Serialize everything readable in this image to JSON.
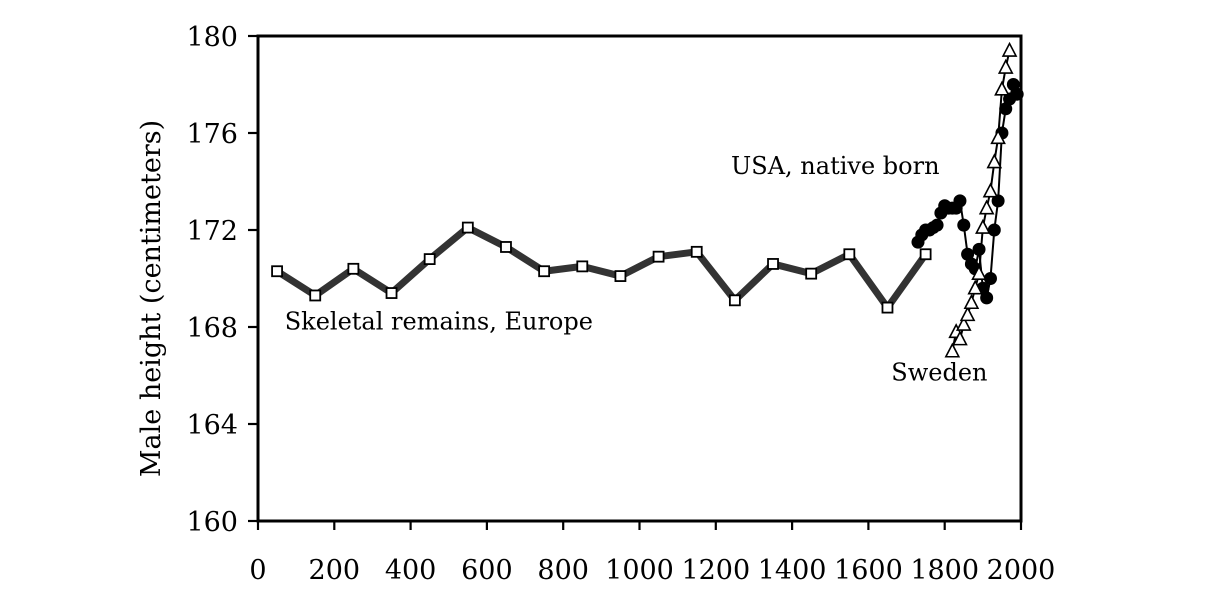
{
  "chart_data": {
    "type": "line",
    "title": "",
    "xlabel": "",
    "ylabel": "Male height (centimeters)",
    "xlim": [
      0,
      2000
    ],
    "ylim": [
      160,
      180
    ],
    "x_ticks": [
      0,
      200,
      400,
      600,
      800,
      1000,
      1200,
      1400,
      1600,
      1800,
      2000
    ],
    "y_ticks": [
      160,
      164,
      168,
      172,
      176,
      180
    ],
    "grid": false,
    "legend": "none",
    "series": [
      {
        "name": "Skeletal remains, Europe",
        "marker": "open-square",
        "line_color": "#333333",
        "x": [
          50,
          150,
          250,
          350,
          450,
          550,
          650,
          750,
          850,
          950,
          1050,
          1150,
          1250,
          1350,
          1450,
          1550,
          1650,
          1750
        ],
        "y": [
          170.3,
          169.3,
          170.4,
          169.4,
          170.8,
          172.1,
          171.3,
          170.3,
          170.5,
          170.1,
          170.9,
          171.1,
          169.1,
          170.6,
          170.2,
          171.0,
          168.8,
          171.0
        ]
      },
      {
        "name": "USA, native born",
        "marker": "filled-circle",
        "line_color": "#000000",
        "x": [
          1730,
          1740,
          1750,
          1760,
          1770,
          1780,
          1790,
          1800,
          1810,
          1820,
          1830,
          1840,
          1850,
          1860,
          1870,
          1880,
          1890,
          1900,
          1910,
          1920,
          1930,
          1940,
          1950,
          1960,
          1970,
          1980,
          1990
        ],
        "y": [
          171.5,
          171.8,
          172.0,
          172.0,
          172.1,
          172.2,
          172.7,
          173.0,
          172.9,
          172.9,
          172.9,
          173.2,
          172.2,
          171.0,
          170.6,
          170.4,
          171.2,
          169.6,
          169.2,
          170.0,
          172.0,
          173.2,
          176.0,
          177.0,
          177.4,
          178.0,
          177.6
        ]
      },
      {
        "name": "Sweden",
        "marker": "open-triangle",
        "line_color": "#000000",
        "x": [
          1820,
          1830,
          1840,
          1850,
          1860,
          1870,
          1880,
          1890,
          1900,
          1910,
          1920,
          1930,
          1940,
          1950,
          1960,
          1970
        ],
        "y": [
          167.0,
          167.8,
          167.5,
          168.1,
          168.5,
          169.0,
          169.6,
          170.2,
          172.1,
          172.9,
          173.6,
          174.8,
          175.8,
          177.8,
          178.7,
          179.4
        ]
      }
    ],
    "annotations": [
      {
        "text": "USA, native born",
        "x": 1240,
        "y": 174.3
      },
      {
        "text": "Skeletal remains, Europe",
        "x": 70,
        "y": 167.9
      },
      {
        "text": "Sweden",
        "x": 1660,
        "y": 165.8
      }
    ]
  }
}
